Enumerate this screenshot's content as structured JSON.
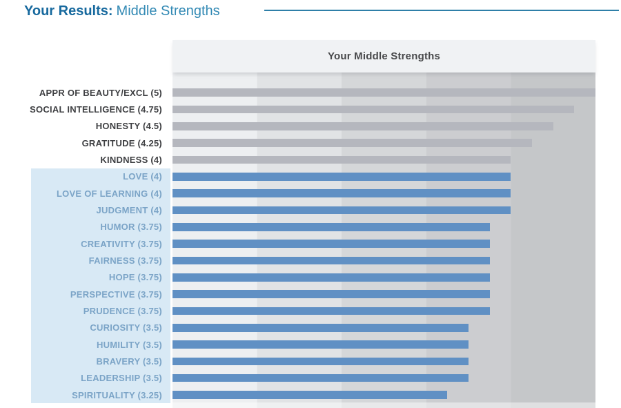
{
  "page_header": {
    "title_bold": "Your Results:",
    "title_light": "Middle Strengths"
  },
  "chart_data": {
    "type": "bar",
    "orientation": "horizontal",
    "title": "Your Middle Strengths",
    "xlabel": "",
    "ylabel": "",
    "xlim": [
      0,
      5
    ],
    "grid": "vertical-bands",
    "legend_position": "none",
    "items": [
      {
        "label": "APPR OF BEAUTY/EXCL (5)",
        "value": 5,
        "group": "top"
      },
      {
        "label": "SOCIAL INTELLIGENCE (4.75)",
        "value": 4.75,
        "group": "top"
      },
      {
        "label": "HONESTY (4.5)",
        "value": 4.5,
        "group": "top"
      },
      {
        "label": "GRATITUDE (4.25)",
        "value": 4.25,
        "group": "top"
      },
      {
        "label": "KINDNESS (4)",
        "value": 4,
        "group": "top"
      },
      {
        "label": "LOVE (4)",
        "value": 4,
        "group": "middle"
      },
      {
        "label": "LOVE OF LEARNING (4)",
        "value": 4,
        "group": "middle"
      },
      {
        "label": "JUDGMENT (4)",
        "value": 4,
        "group": "middle"
      },
      {
        "label": "HUMOR (3.75)",
        "value": 3.75,
        "group": "middle"
      },
      {
        "label": "CREATIVITY (3.75)",
        "value": 3.75,
        "group": "middle"
      },
      {
        "label": "FAIRNESS (3.75)",
        "value": 3.75,
        "group": "middle"
      },
      {
        "label": "HOPE (3.75)",
        "value": 3.75,
        "group": "middle"
      },
      {
        "label": "PERSPECTIVE (3.75)",
        "value": 3.75,
        "group": "middle"
      },
      {
        "label": "PRUDENCE (3.75)",
        "value": 3.75,
        "group": "middle"
      },
      {
        "label": "CURIOSITY (3.5)",
        "value": 3.5,
        "group": "middle"
      },
      {
        "label": "HUMILITY (3.5)",
        "value": 3.5,
        "group": "middle"
      },
      {
        "label": "BRAVERY (3.5)",
        "value": 3.5,
        "group": "middle"
      },
      {
        "label": "LEADERSHIP (3.5)",
        "value": 3.5,
        "group": "middle"
      },
      {
        "label": "SPIRITUALITY (3.25)",
        "value": 3.25,
        "group": "middle"
      }
    ]
  },
  "colors": {
    "header_bold": "#17699e",
    "header_light": "#3289b4",
    "header_rule": "#2e7fa8",
    "title_box_bg": "#f0f2f4",
    "title_text": "#48494b",
    "bar_gray": "#b5b7be",
    "bar_blue": "#6090c4",
    "highlight_bg": "#d8e9f5",
    "label_dark": "#3f4043",
    "label_blue": "#7ba4c7",
    "bands": [
      "#edeff1",
      "#e1e3e5",
      "#d5d7d9",
      "#cccdd0",
      "#c5c7c9"
    ]
  }
}
